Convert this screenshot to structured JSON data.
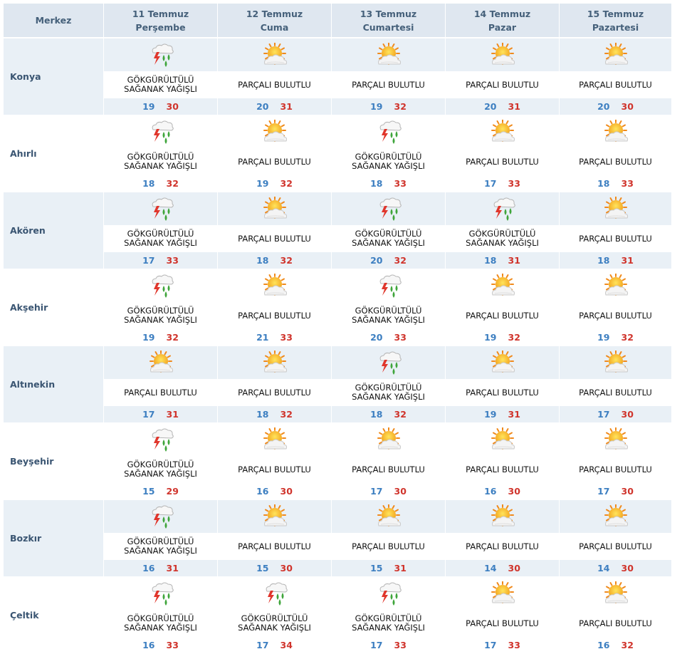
{
  "header": {
    "location_label": "Merkez",
    "days": [
      {
        "date": "11 Temmuz",
        "weekday": "Perşembe"
      },
      {
        "date": "12 Temmuz",
        "weekday": "Cuma"
      },
      {
        "date": "13 Temmuz",
        "weekday": "Cumartesi"
      },
      {
        "date": "14 Temmuz",
        "weekday": "Pazar"
      },
      {
        "date": "15 Temmuz",
        "weekday": "Pazartesi"
      }
    ]
  },
  "conditions": {
    "storm": {
      "line1": "GÖKGÜRÜLTÜLÜ",
      "line2": "SAĞANAK YAĞIŞLI",
      "icon": "thunderstorm-rain-icon"
    },
    "partly": {
      "line1": "PARÇALI BULUTLU",
      "line2": "",
      "icon": "partly-cloudy-icon"
    }
  },
  "colors": {
    "min_temp": "#3d7fc1",
    "max_temp": "#d0342c",
    "header_bg": "#dfe7f0",
    "band_bg": "#e9f0f6"
  },
  "rows": [
    {
      "city": "Konya",
      "days": [
        {
          "cond": "storm",
          "min": "19",
          "max": "30"
        },
        {
          "cond": "partly",
          "min": "20",
          "max": "31"
        },
        {
          "cond": "partly",
          "min": "19",
          "max": "32"
        },
        {
          "cond": "partly",
          "min": "20",
          "max": "31"
        },
        {
          "cond": "partly",
          "min": "20",
          "max": "30"
        }
      ]
    },
    {
      "city": "Ahırlı",
      "days": [
        {
          "cond": "storm",
          "min": "18",
          "max": "32"
        },
        {
          "cond": "partly",
          "min": "19",
          "max": "32"
        },
        {
          "cond": "storm",
          "min": "18",
          "max": "33"
        },
        {
          "cond": "partly",
          "min": "17",
          "max": "33"
        },
        {
          "cond": "partly",
          "min": "18",
          "max": "33"
        }
      ]
    },
    {
      "city": "Akören",
      "days": [
        {
          "cond": "storm",
          "min": "17",
          "max": "33"
        },
        {
          "cond": "partly",
          "min": "18",
          "max": "32"
        },
        {
          "cond": "storm",
          "min": "20",
          "max": "32"
        },
        {
          "cond": "storm",
          "min": "18",
          "max": "31"
        },
        {
          "cond": "partly",
          "min": "18",
          "max": "31"
        }
      ]
    },
    {
      "city": "Akşehir",
      "days": [
        {
          "cond": "storm",
          "min": "19",
          "max": "32"
        },
        {
          "cond": "partly",
          "min": "21",
          "max": "33"
        },
        {
          "cond": "storm",
          "min": "20",
          "max": "33"
        },
        {
          "cond": "partly",
          "min": "19",
          "max": "32"
        },
        {
          "cond": "partly",
          "min": "19",
          "max": "32"
        }
      ]
    },
    {
      "city": "Altınekin",
      "days": [
        {
          "cond": "partly",
          "min": "17",
          "max": "31"
        },
        {
          "cond": "partly",
          "min": "18",
          "max": "32"
        },
        {
          "cond": "storm",
          "min": "18",
          "max": "32"
        },
        {
          "cond": "partly",
          "min": "19",
          "max": "31"
        },
        {
          "cond": "partly",
          "min": "17",
          "max": "30"
        }
      ]
    },
    {
      "city": "Beyşehir",
      "days": [
        {
          "cond": "storm",
          "min": "15",
          "max": "29"
        },
        {
          "cond": "partly",
          "min": "16",
          "max": "30"
        },
        {
          "cond": "partly",
          "min": "17",
          "max": "30"
        },
        {
          "cond": "partly",
          "min": "16",
          "max": "30"
        },
        {
          "cond": "partly",
          "min": "17",
          "max": "30"
        }
      ]
    },
    {
      "city": "Bozkır",
      "days": [
        {
          "cond": "storm",
          "min": "16",
          "max": "31"
        },
        {
          "cond": "partly",
          "min": "15",
          "max": "30"
        },
        {
          "cond": "partly",
          "min": "15",
          "max": "31"
        },
        {
          "cond": "partly",
          "min": "14",
          "max": "30"
        },
        {
          "cond": "partly",
          "min": "14",
          "max": "30"
        }
      ]
    },
    {
      "city": "Çeltik",
      "days": [
        {
          "cond": "storm",
          "min": "16",
          "max": "33"
        },
        {
          "cond": "storm",
          "min": "17",
          "max": "34"
        },
        {
          "cond": "storm",
          "min": "17",
          "max": "33"
        },
        {
          "cond": "partly",
          "min": "17",
          "max": "33"
        },
        {
          "cond": "partly",
          "min": "16",
          "max": "32"
        }
      ]
    }
  ]
}
